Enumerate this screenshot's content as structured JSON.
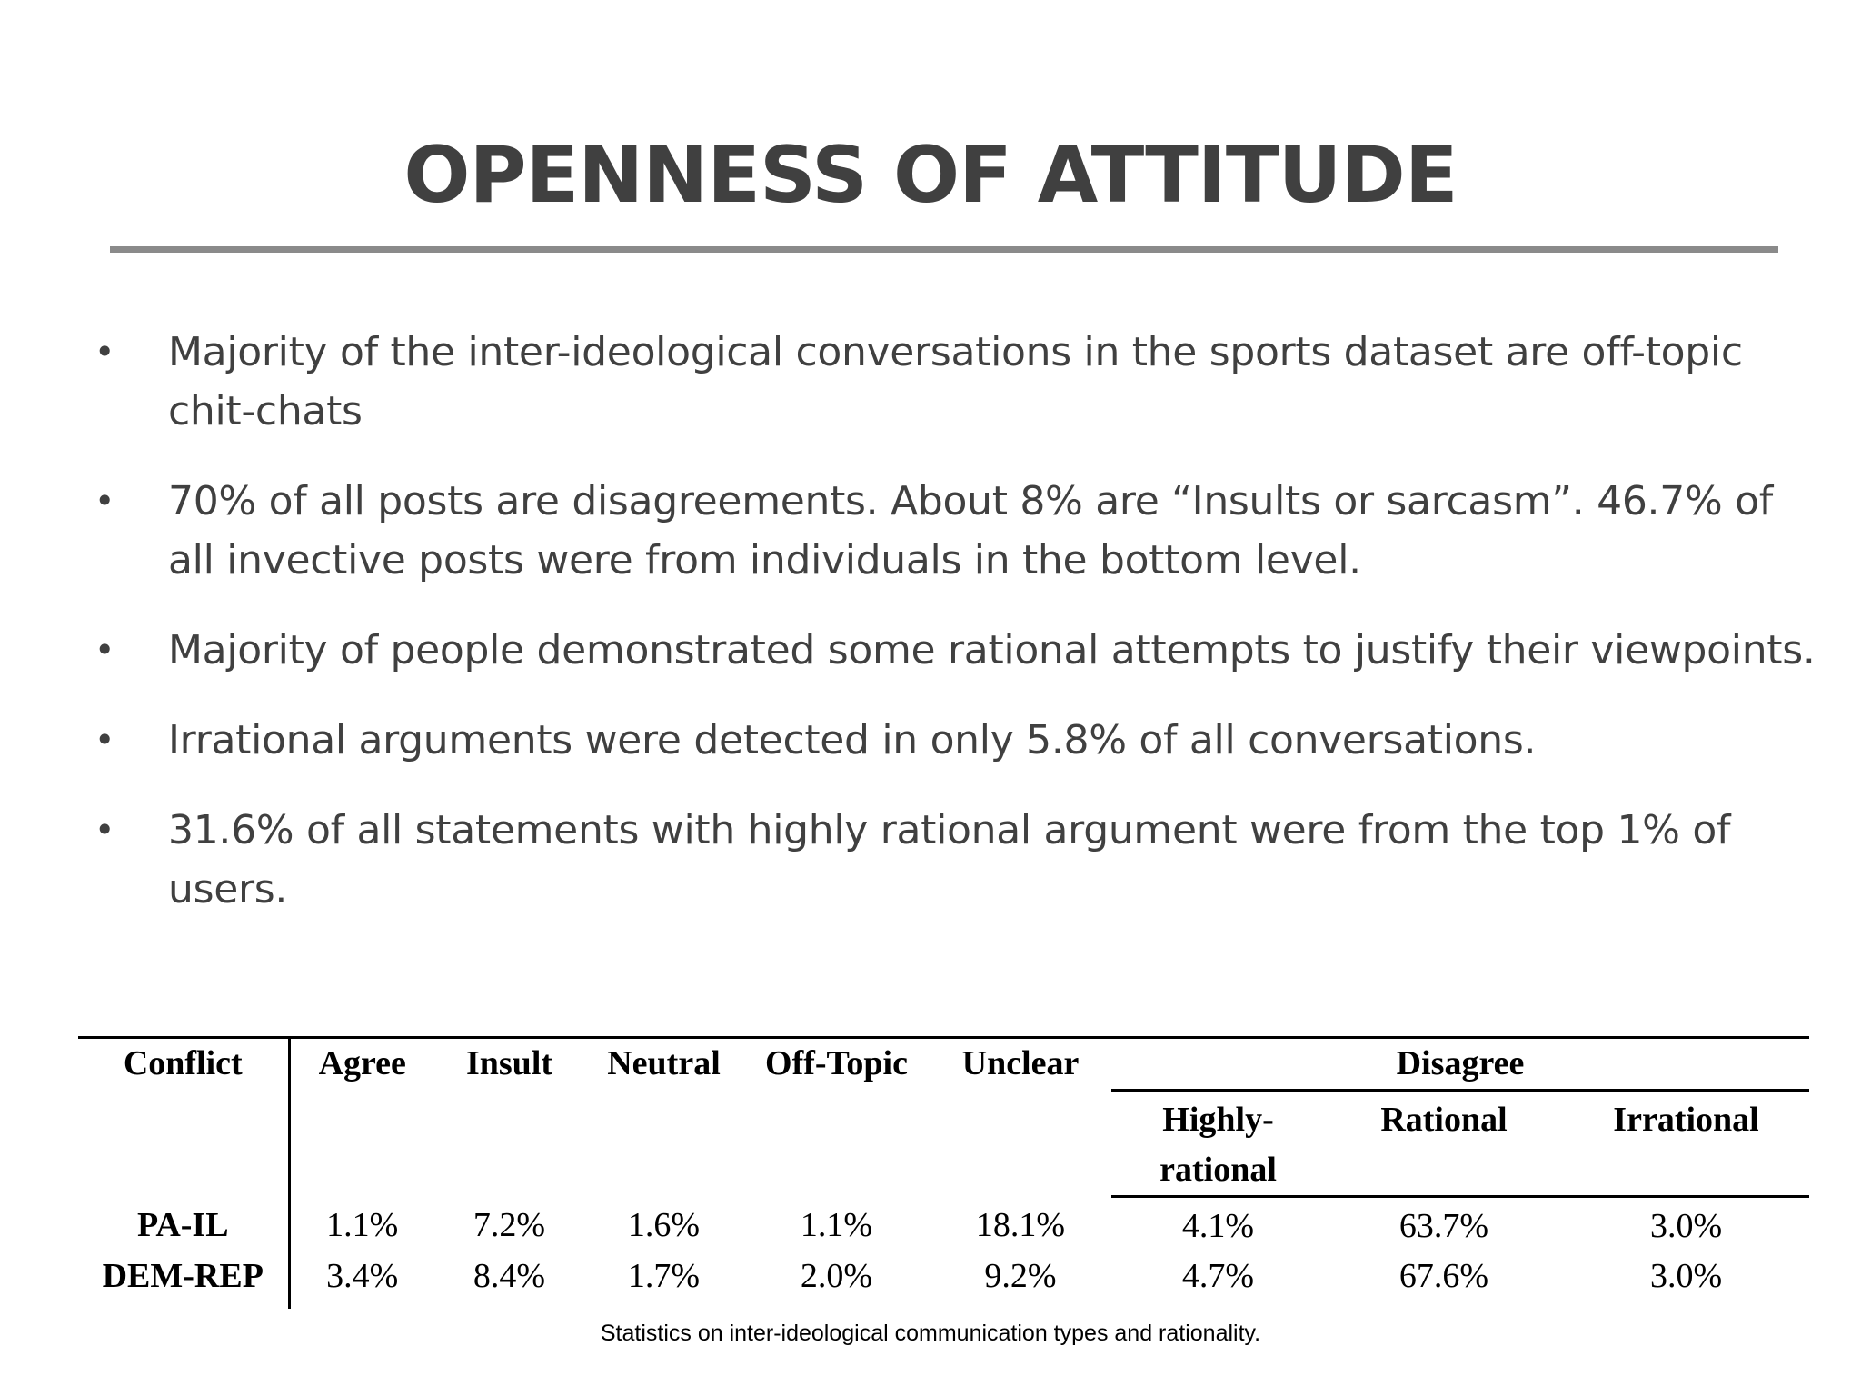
{
  "slide": {
    "title": "OPENNESS OF ATTITUDE",
    "bullets": [
      "Majority of the inter-ideological conversations in the sports dataset are off-topic chit-chats",
      "70% of all posts are disagreements.  About 8% are “Insults or sarcasm”. 46.7% of all invective posts were from individuals in the bottom level.",
      "Majority of people demonstrated some rational attempts to justify their viewpoints.",
      "Irrational arguments were detected in only 5.8% of all conversations.",
      "31.6% of all statements with highly rational argument were from the top 1% of users."
    ],
    "bullet_symbol": "•"
  },
  "table": {
    "headers": {
      "conflict": "Conflict",
      "agree": "Agree",
      "insult": "Insult",
      "neutral": "Neutral",
      "offtopic": "Off-Topic",
      "unclear": "Unclear",
      "disagree": "Disagree",
      "highly_rational_1": "Highly-",
      "highly_rational_2": "rational",
      "rational": "Rational",
      "irrational": "Irrational"
    },
    "rows": [
      {
        "label": "PA-IL",
        "values": [
          "1.1%",
          "7.2%",
          "1.6%",
          "1.1%",
          "18.1%",
          "4.1%",
          "63.7%",
          "3.0%"
        ]
      },
      {
        "label": "DEM-REP",
        "values": [
          "3.4%",
          "8.4%",
          "1.7%",
          "2.0%",
          "9.2%",
          "4.7%",
          "67.6%",
          "3.0%"
        ]
      }
    ],
    "caption": "Statistics on inter-ideological communication types and rationality."
  },
  "colors": {
    "text": "#404040",
    "rule": "#8a8a8a",
    "table_text": "#000000"
  }
}
